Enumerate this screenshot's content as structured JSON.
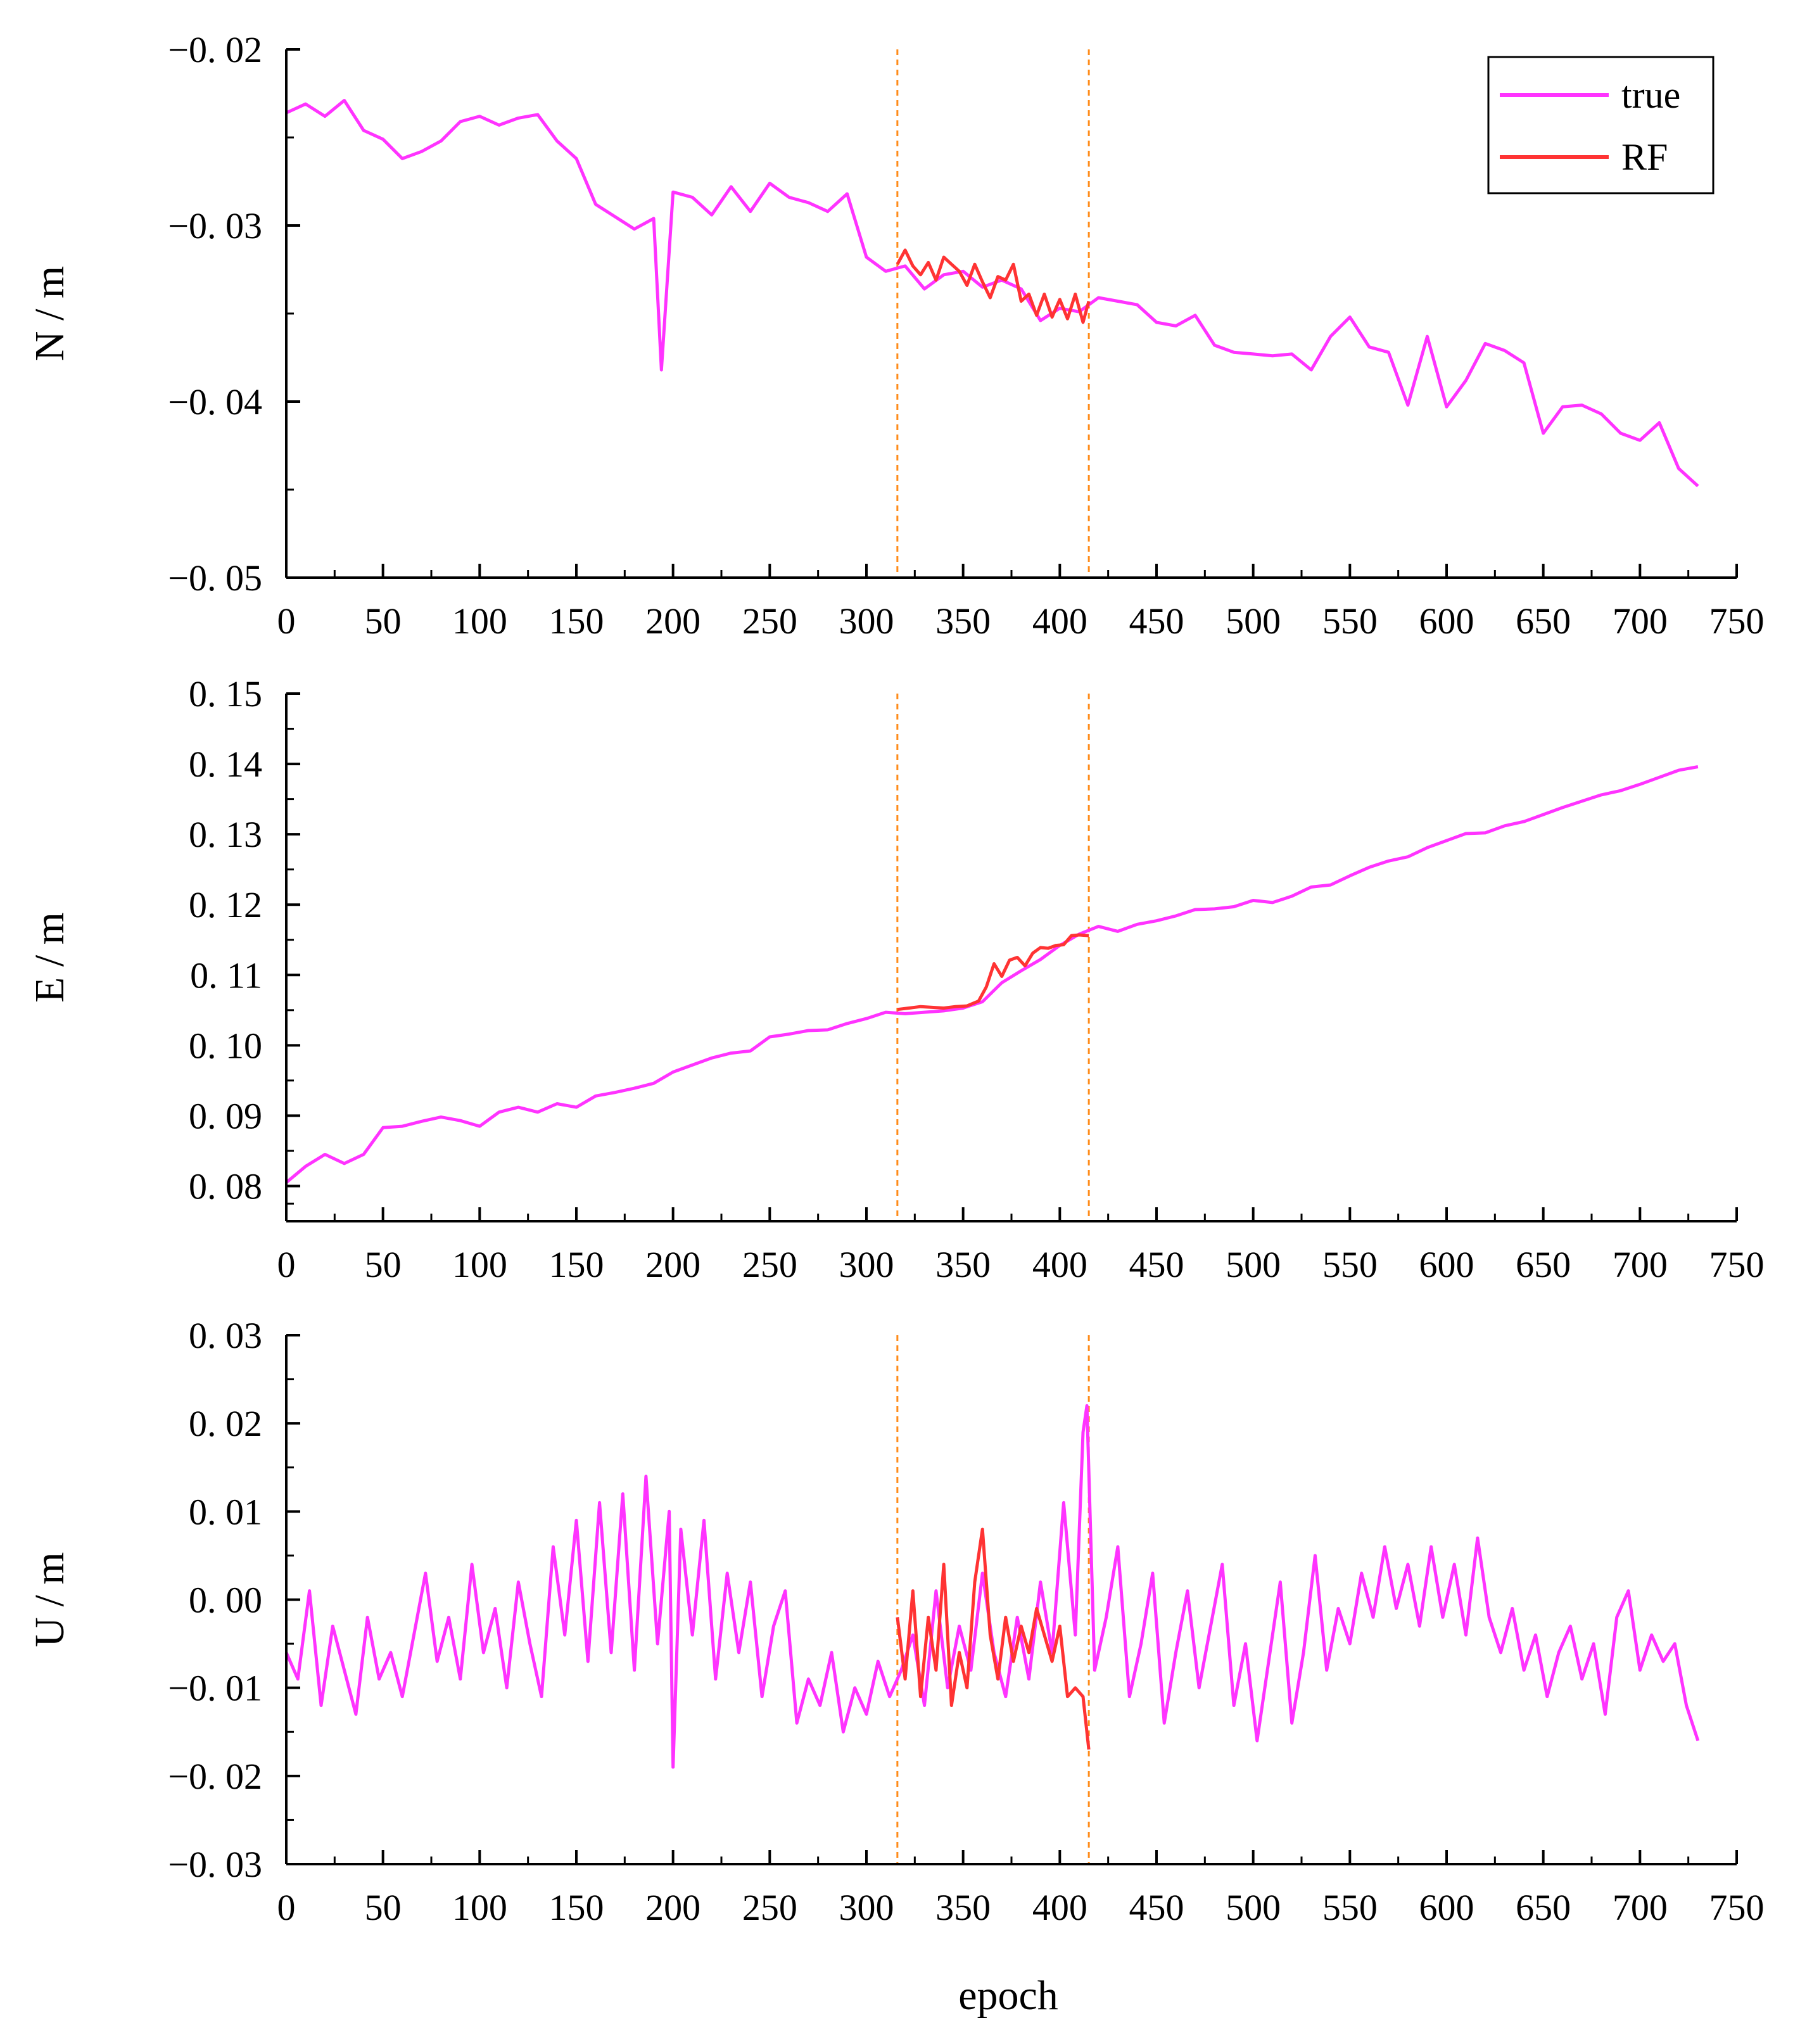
{
  "colors": {
    "true_series": "#ff33ff",
    "rf_series": "#ff3333",
    "marker_lines": "#ff8c1a",
    "axes": "#000000"
  },
  "shared": {
    "xlabel": "epoch",
    "x_ticks": [
      "0",
      "50",
      "100",
      "150",
      "200",
      "250",
      "300",
      "350",
      "400",
      "450",
      "500",
      "550",
      "600",
      "650",
      "700",
      "750"
    ],
    "xlim": [
      0,
      750
    ],
    "marker_epochs": [
      316,
      415
    ]
  },
  "legend": {
    "entries": [
      {
        "label": "true",
        "color": "#ff33ff"
      },
      {
        "label": "RF",
        "color": "#ff3333"
      }
    ]
  },
  "chart_data": [
    {
      "type": "line",
      "id": "N",
      "ylabel": "N / m",
      "ylim": [
        -0.05,
        -0.02
      ],
      "y_ticks": [
        "−0. 02",
        "−0. 03",
        "−0. 04",
        "−0. 05"
      ],
      "y_tick_values": [
        -0.02,
        -0.03,
        -0.04,
        -0.05
      ],
      "series": [
        {
          "name": "true",
          "x": [
            0,
            10,
            20,
            30,
            40,
            50,
            60,
            70,
            80,
            90,
            100,
            110,
            120,
            130,
            140,
            150,
            160,
            170,
            180,
            190,
            194,
            200,
            210,
            220,
            230,
            240,
            250,
            260,
            270,
            280,
            290,
            300,
            310,
            320,
            330,
            340,
            350,
            360,
            370,
            380,
            390,
            400,
            410,
            420,
            430,
            440,
            450,
            460,
            470,
            480,
            490,
            500,
            510,
            520,
            530,
            540,
            550,
            560,
            570,
            580,
            590,
            600,
            610,
            620,
            630,
            640,
            650,
            660,
            670,
            680,
            690,
            700,
            710,
            720,
            730
          ],
          "values": [
            -0.0236,
            -0.0231,
            -0.0238,
            -0.0229,
            -0.0246,
            -0.0251,
            -0.0262,
            -0.0258,
            -0.0252,
            -0.0241,
            -0.0238,
            -0.0243,
            -0.0239,
            -0.0237,
            -0.0252,
            -0.0262,
            -0.0288,
            -0.0295,
            -0.0302,
            -0.0296,
            -0.0382,
            -0.0281,
            -0.0284,
            -0.0294,
            -0.0278,
            -0.0292,
            -0.0276,
            -0.0284,
            -0.0287,
            -0.0292,
            -0.0282,
            -0.0318,
            -0.0326,
            -0.0323,
            -0.0336,
            -0.0328,
            -0.0326,
            -0.0335,
            -0.0331,
            -0.0336,
            -0.0354,
            -0.0347,
            -0.0349,
            -0.0341,
            -0.0343,
            -0.0345,
            -0.0355,
            -0.0357,
            -0.0351,
            -0.0368,
            -0.0372,
            -0.0373,
            -0.0374,
            -0.0373,
            -0.0382,
            -0.0363,
            -0.0352,
            -0.0369,
            -0.0372,
            -0.0402,
            -0.0363,
            -0.0403,
            -0.0388,
            -0.0367,
            -0.0371,
            -0.0378,
            -0.0418,
            -0.0403,
            -0.0402,
            -0.0407,
            -0.0418,
            -0.0422,
            -0.0412,
            -0.0438,
            -0.0448
          ]
        },
        {
          "name": "RF",
          "x": [
            316,
            320,
            324,
            328,
            332,
            336,
            340,
            344,
            348,
            352,
            356,
            360,
            364,
            368,
            372,
            376,
            380,
            384,
            388,
            392,
            396,
            400,
            404,
            408,
            412,
            415
          ],
          "values": [
            -0.0322,
            -0.0314,
            -0.0323,
            -0.0328,
            -0.0321,
            -0.0331,
            -0.0318,
            -0.0322,
            -0.0326,
            -0.0334,
            -0.0322,
            -0.0332,
            -0.0341,
            -0.0329,
            -0.0331,
            -0.0322,
            -0.0343,
            -0.0339,
            -0.0351,
            -0.0339,
            -0.0352,
            -0.0342,
            -0.0353,
            -0.0339,
            -0.0355,
            -0.0343
          ]
        }
      ]
    },
    {
      "type": "line",
      "id": "E",
      "ylabel": "E / m",
      "ylim": [
        0.075,
        0.15
      ],
      "y_ticks": [
        "0. 08",
        "0. 09",
        "0. 10",
        "0. 11",
        "0. 12",
        "0. 13",
        "0. 14",
        "0. 15"
      ],
      "y_tick_values": [
        0.08,
        0.09,
        0.1,
        0.11,
        0.12,
        0.13,
        0.14,
        0.15
      ],
      "series": [
        {
          "name": "true",
          "x": [
            0,
            10,
            20,
            30,
            40,
            50,
            60,
            70,
            80,
            90,
            100,
            110,
            120,
            130,
            140,
            150,
            160,
            170,
            180,
            190,
            200,
            210,
            220,
            230,
            240,
            250,
            260,
            270,
            280,
            290,
            300,
            310,
            320,
            330,
            340,
            350,
            360,
            370,
            380,
            390,
            400,
            410,
            420,
            430,
            440,
            450,
            460,
            470,
            480,
            490,
            500,
            510,
            520,
            530,
            540,
            550,
            560,
            570,
            580,
            590,
            600,
            610,
            620,
            630,
            640,
            650,
            660,
            670,
            680,
            690,
            700,
            710,
            720,
            730
          ],
          "values": [
            0.0805,
            0.0828,
            0.0845,
            0.0832,
            0.0845,
            0.0883,
            0.0885,
            0.0892,
            0.0898,
            0.0893,
            0.0885,
            0.0905,
            0.0912,
            0.0905,
            0.0917,
            0.0912,
            0.0928,
            0.0933,
            0.0939,
            0.0946,
            0.0962,
            0.0972,
            0.0982,
            0.0989,
            0.0992,
            0.1012,
            0.1016,
            0.1021,
            0.1022,
            0.1031,
            0.1038,
            0.1047,
            0.1045,
            0.1047,
            0.1049,
            0.1053,
            0.1062,
            0.1089,
            0.1106,
            0.1122,
            0.1142,
            0.1158,
            0.1169,
            0.1162,
            0.1172,
            0.1177,
            0.1184,
            0.1193,
            0.1194,
            0.1197,
            0.1206,
            0.1203,
            0.1212,
            0.1225,
            0.1228,
            0.1241,
            0.1253,
            0.1262,
            0.1268,
            0.1281,
            0.1291,
            0.1301,
            0.1302,
            0.1312,
            0.1318,
            0.1328,
            0.1338,
            0.1347,
            0.1356,
            0.1362,
            0.1371,
            0.1381,
            0.1391,
            0.1396
          ]
        },
        {
          "name": "RF",
          "x": [
            316,
            322,
            328,
            334,
            340,
            346,
            352,
            358,
            362,
            366,
            370,
            374,
            378,
            382,
            386,
            390,
            394,
            398,
            402,
            406,
            410,
            415
          ],
          "values": [
            0.1051,
            0.1053,
            0.1055,
            0.1054,
            0.1053,
            0.1055,
            0.1056,
            0.1063,
            0.1083,
            0.1116,
            0.1098,
            0.1121,
            0.1125,
            0.1113,
            0.1131,
            0.1139,
            0.1138,
            0.1142,
            0.1143,
            0.1156,
            0.1157,
            0.1156
          ]
        }
      ]
    },
    {
      "type": "line",
      "id": "U",
      "ylabel": "U / m",
      "ylim": [
        -0.03,
        0.03
      ],
      "y_ticks": [
        "0. 03",
        "0. 02",
        "0. 01",
        "0. 00",
        "−0. 01",
        "−0. 02",
        "−0. 03"
      ],
      "y_tick_values": [
        0.03,
        0.02,
        0.01,
        0.0,
        -0.01,
        -0.02,
        -0.03
      ],
      "series": [
        {
          "name": "true",
          "x": [
            0,
            6,
            12,
            18,
            24,
            30,
            36,
            42,
            48,
            54,
            60,
            66,
            72,
            78,
            84,
            90,
            96,
            102,
            108,
            114,
            120,
            126,
            132,
            138,
            144,
            150,
            156,
            162,
            168,
            174,
            180,
            186,
            192,
            198,
            200,
            204,
            210,
            216,
            222,
            228,
            234,
            240,
            246,
            252,
            258,
            264,
            270,
            276,
            282,
            288,
            294,
            300,
            306,
            312,
            318,
            324,
            330,
            336,
            342,
            348,
            354,
            360,
            366,
            372,
            378,
            384,
            390,
            396,
            402,
            408,
            412,
            414,
            418,
            424,
            430,
            436,
            442,
            448,
            454,
            460,
            466,
            472,
            478,
            484,
            490,
            496,
            502,
            508,
            514,
            520,
            526,
            532,
            538,
            544,
            550,
            556,
            562,
            568,
            574,
            580,
            586,
            592,
            598,
            604,
            610,
            616,
            622,
            628,
            634,
            640,
            646,
            652,
            658,
            664,
            670,
            676,
            682,
            688,
            694,
            700,
            706,
            712,
            718,
            724,
            730
          ],
          "values": [
            -0.006,
            -0.009,
            0.001,
            -0.012,
            -0.003,
            -0.008,
            -0.013,
            -0.002,
            -0.009,
            -0.006,
            -0.011,
            -0.004,
            0.003,
            -0.007,
            -0.002,
            -0.009,
            0.004,
            -0.006,
            -0.001,
            -0.01,
            0.002,
            -0.005,
            -0.011,
            0.006,
            -0.004,
            0.009,
            -0.007,
            0.011,
            -0.006,
            0.012,
            -0.008,
            0.014,
            -0.005,
            0.01,
            -0.019,
            0.008,
            -0.004,
            0.009,
            -0.009,
            0.003,
            -0.006,
            0.002,
            -0.011,
            -0.003,
            0.001,
            -0.014,
            -0.009,
            -0.012,
            -0.006,
            -0.015,
            -0.01,
            -0.013,
            -0.007,
            -0.011,
            -0.008,
            -0.004,
            -0.012,
            0.001,
            -0.01,
            -0.003,
            -0.008,
            0.003,
            -0.006,
            -0.011,
            -0.002,
            -0.009,
            0.002,
            -0.006,
            0.011,
            -0.004,
            0.019,
            0.022,
            -0.008,
            -0.002,
            0.006,
            -0.011,
            -0.005,
            0.003,
            -0.014,
            -0.006,
            0.001,
            -0.01,
            -0.003,
            0.004,
            -0.012,
            -0.005,
            -0.016,
            -0.007,
            0.002,
            -0.014,
            -0.006,
            0.005,
            -0.008,
            -0.001,
            -0.005,
            0.003,
            -0.002,
            0.006,
            -0.001,
            0.004,
            -0.003,
            0.006,
            -0.002,
            0.004,
            -0.004,
            0.007,
            -0.002,
            -0.006,
            -0.001,
            -0.008,
            -0.004,
            -0.011,
            -0.006,
            -0.003,
            -0.009,
            -0.005,
            -0.013,
            -0.002,
            0.001,
            -0.008,
            -0.004,
            -0.007,
            -0.005,
            -0.012,
            -0.016
          ]
        },
        {
          "name": "RF",
          "x": [
            316,
            320,
            324,
            328,
            332,
            336,
            340,
            344,
            348,
            352,
            356,
            360,
            364,
            368,
            372,
            376,
            380,
            384,
            388,
            392,
            396,
            400,
            404,
            408,
            412,
            415
          ],
          "values": [
            -0.002,
            -0.009,
            0.001,
            -0.011,
            -0.002,
            -0.008,
            0.004,
            -0.012,
            -0.006,
            -0.01,
            0.002,
            0.008,
            -0.004,
            -0.009,
            -0.002,
            -0.007,
            -0.003,
            -0.006,
            -0.001,
            -0.004,
            -0.007,
            -0.003,
            -0.011,
            -0.01,
            -0.011,
            -0.017
          ]
        }
      ]
    }
  ]
}
